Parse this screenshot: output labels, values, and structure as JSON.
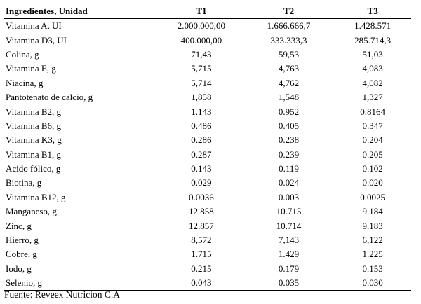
{
  "table": {
    "headers": [
      "Ingredientes, Unidad",
      "T1",
      "T2",
      "T3"
    ],
    "rows": [
      [
        "Vitamina A,  UI",
        "2.000.000,00",
        "1.666.666,7",
        "1.428.571"
      ],
      [
        "Vitamina D3,  UI",
        "400.000,00",
        "333.333,3",
        "285.714,3"
      ],
      [
        "Colina, g",
        "71,43",
        "59,53",
        "51,03"
      ],
      [
        "Vitamina E, g",
        "5,715",
        "4,763",
        "4,083"
      ],
      [
        "Niacina, g",
        "5,714",
        "4,762",
        "4,082"
      ],
      [
        "Pantotenato  de calcio, g",
        "1,858",
        "1,548",
        "1,327"
      ],
      [
        "Vitamina B2, g",
        "1.143",
        "0.952",
        "0.8164"
      ],
      [
        "Vitamina B6, g",
        "0.486",
        "0.405",
        "0.347"
      ],
      [
        "Vitamina K3, g",
        "0.286",
        "0.238",
        "0.204"
      ],
      [
        "Vitamina B1, g",
        "0.287",
        "0.239",
        "0.205"
      ],
      [
        "Acido fólico, g",
        "0.143",
        "0.119",
        "0.102"
      ],
      [
        "Biotina, g",
        "0.029",
        "0.024",
        "0.020"
      ],
      [
        "Vitamina B12, g",
        "0.0036",
        "0.003",
        "0.0025"
      ],
      [
        "Manganeso, g",
        "12.858",
        "10.715",
        "9.184"
      ],
      [
        "Zinc, g",
        "12.857",
        "10.714",
        "9.183"
      ],
      [
        "Hierro, g",
        "8,572",
        "7,143",
        "6,122"
      ],
      [
        "Cobre, g",
        "1.715",
        "1.429",
        "1.225"
      ],
      [
        "Iodo, g",
        "0.215",
        "0.179",
        "0.153"
      ],
      [
        "Selenio, g",
        "0.043",
        "0.035",
        "0.030"
      ]
    ]
  },
  "source": "Fuente: Reveex Nutricion C.A"
}
